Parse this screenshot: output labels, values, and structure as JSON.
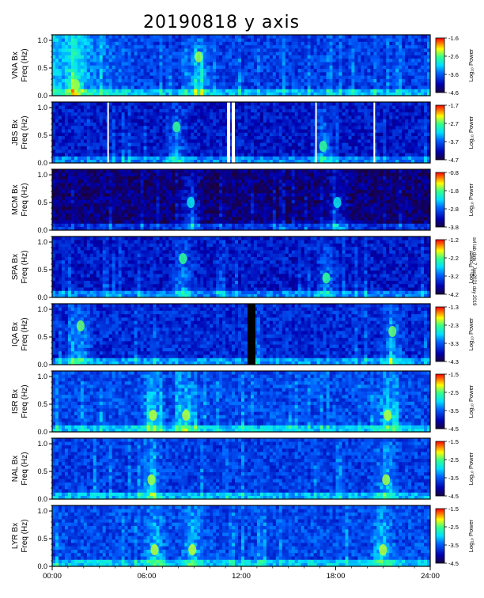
{
  "title": "20190818 y axis",
  "credit": "svl lab date 7 Jan2021 day 2019",
  "x_ticks": [
    "00:00",
    "06:00",
    "12:00",
    "18:00",
    "24:00"
  ],
  "freq_unit": "Freq (Hz)",
  "colorbar_label": "Log₁₀ Power",
  "y_ticks": [
    "0.0",
    "0.5",
    "1.0"
  ],
  "chart_data": [
    {
      "type": "heatmap",
      "station": "VNA",
      "component": "Bx",
      "ylabel": "VNA Bx",
      "xlim": [
        0,
        24
      ],
      "ylim": [
        0,
        1.1
      ],
      "clim": [
        -4.6,
        -1.6
      ],
      "cbar_ticks": [
        "-1.6",
        "-2.6",
        "-3.6",
        "-4.6"
      ],
      "gaps": [],
      "bursts": [
        {
          "t": 9.3,
          "f": 0.7
        },
        {
          "t": 1.5,
          "f": 0.2
        }
      ]
    },
    {
      "type": "heatmap",
      "station": "JBS",
      "component": "Bx",
      "ylabel": "JBS Bx",
      "xlim": [
        0,
        24
      ],
      "ylim": [
        0,
        1.1
      ],
      "clim": [
        -4.7,
        -1.7
      ],
      "cbar_ticks": [
        "-1.7",
        "-2.7",
        "-3.7",
        "-4.7"
      ],
      "gaps": [
        [
          3.5,
          3.6
        ],
        [
          11.1,
          11.3
        ],
        [
          11.4,
          11.6
        ],
        [
          16.7,
          16.8
        ],
        [
          20.4,
          20.5
        ]
      ],
      "bursts": [
        {
          "t": 7.9,
          "f": 0.65
        },
        {
          "t": 17.2,
          "f": 0.3
        }
      ]
    },
    {
      "type": "heatmap",
      "station": "MCM",
      "component": "Bx",
      "ylabel": "MCM Bx",
      "xlim": [
        0,
        24
      ],
      "ylim": [
        0,
        1.1
      ],
      "clim": [
        -3.8,
        -0.8
      ],
      "cbar_ticks": [
        "-0.8",
        "-1.8",
        "-2.8",
        "-3.8"
      ],
      "gaps": [],
      "bursts": [
        {
          "t": 8.8,
          "f": 0.5
        },
        {
          "t": 18.1,
          "f": 0.5
        }
      ]
    },
    {
      "type": "heatmap",
      "station": "SPA",
      "component": "Bx",
      "ylabel": "SPA Bx",
      "xlim": [
        0,
        24
      ],
      "ylim": [
        0,
        1.1
      ],
      "clim": [
        -4.2,
        -1.2
      ],
      "cbar_ticks": [
        "-1.2",
        "-2.2",
        "-3.2",
        "-4.2"
      ],
      "gaps": [],
      "bursts": [
        {
          "t": 8.3,
          "f": 0.7
        },
        {
          "t": 17.4,
          "f": 0.35
        }
      ]
    },
    {
      "type": "heatmap",
      "station": "IQA",
      "component": "Bx",
      "ylabel": "IQA Bx",
      "xlim": [
        0,
        24
      ],
      "ylim": [
        0,
        1.1
      ],
      "clim": [
        -4.3,
        -1.3
      ],
      "cbar_ticks": [
        "-1.3",
        "-2.3",
        "-3.3",
        "-4.3"
      ],
      "gaps": [
        [
          12.4,
          12.9
        ]
      ],
      "bursts": [
        {
          "t": 1.8,
          "f": 0.7
        },
        {
          "t": 21.6,
          "f": 0.6
        }
      ]
    },
    {
      "type": "heatmap",
      "station": "ISR",
      "component": "Bx",
      "ylabel": "ISR Bx",
      "xlim": [
        0,
        24
      ],
      "ylim": [
        0,
        1.1
      ],
      "clim": [
        -4.5,
        -1.5
      ],
      "cbar_ticks": [
        "-1.5",
        "-2.5",
        "-3.5",
        "-4.5"
      ],
      "gaps": [],
      "bursts": [
        {
          "t": 6.4,
          "f": 0.3
        },
        {
          "t": 8.5,
          "f": 0.3
        },
        {
          "t": 21.3,
          "f": 0.3
        }
      ]
    },
    {
      "type": "heatmap",
      "station": "NAL",
      "component": "Bx",
      "ylabel": "NAL Bx",
      "xlim": [
        0,
        24
      ],
      "ylim": [
        0,
        1.1
      ],
      "clim": [
        -4.5,
        -1.5
      ],
      "cbar_ticks": [
        "-1.5",
        "-2.5",
        "-3.5",
        "-4.5"
      ],
      "gaps": [],
      "bursts": [
        {
          "t": 6.3,
          "f": 0.35
        },
        {
          "t": 21.2,
          "f": 0.35
        }
      ]
    },
    {
      "type": "heatmap",
      "station": "LYR",
      "component": "Bx",
      "ylabel": "LYR Bx",
      "xlim": [
        0,
        24
      ],
      "ylim": [
        0,
        1.1
      ],
      "clim": [
        -4.5,
        -1.5
      ],
      "cbar_ticks": [
        "-1.5",
        "-2.5",
        "-3.5",
        "-4.5"
      ],
      "gaps": [],
      "bursts": [
        {
          "t": 6.5,
          "f": 0.3
        },
        {
          "t": 8.9,
          "f": 0.3
        },
        {
          "t": 21.0,
          "f": 0.3
        }
      ]
    }
  ]
}
